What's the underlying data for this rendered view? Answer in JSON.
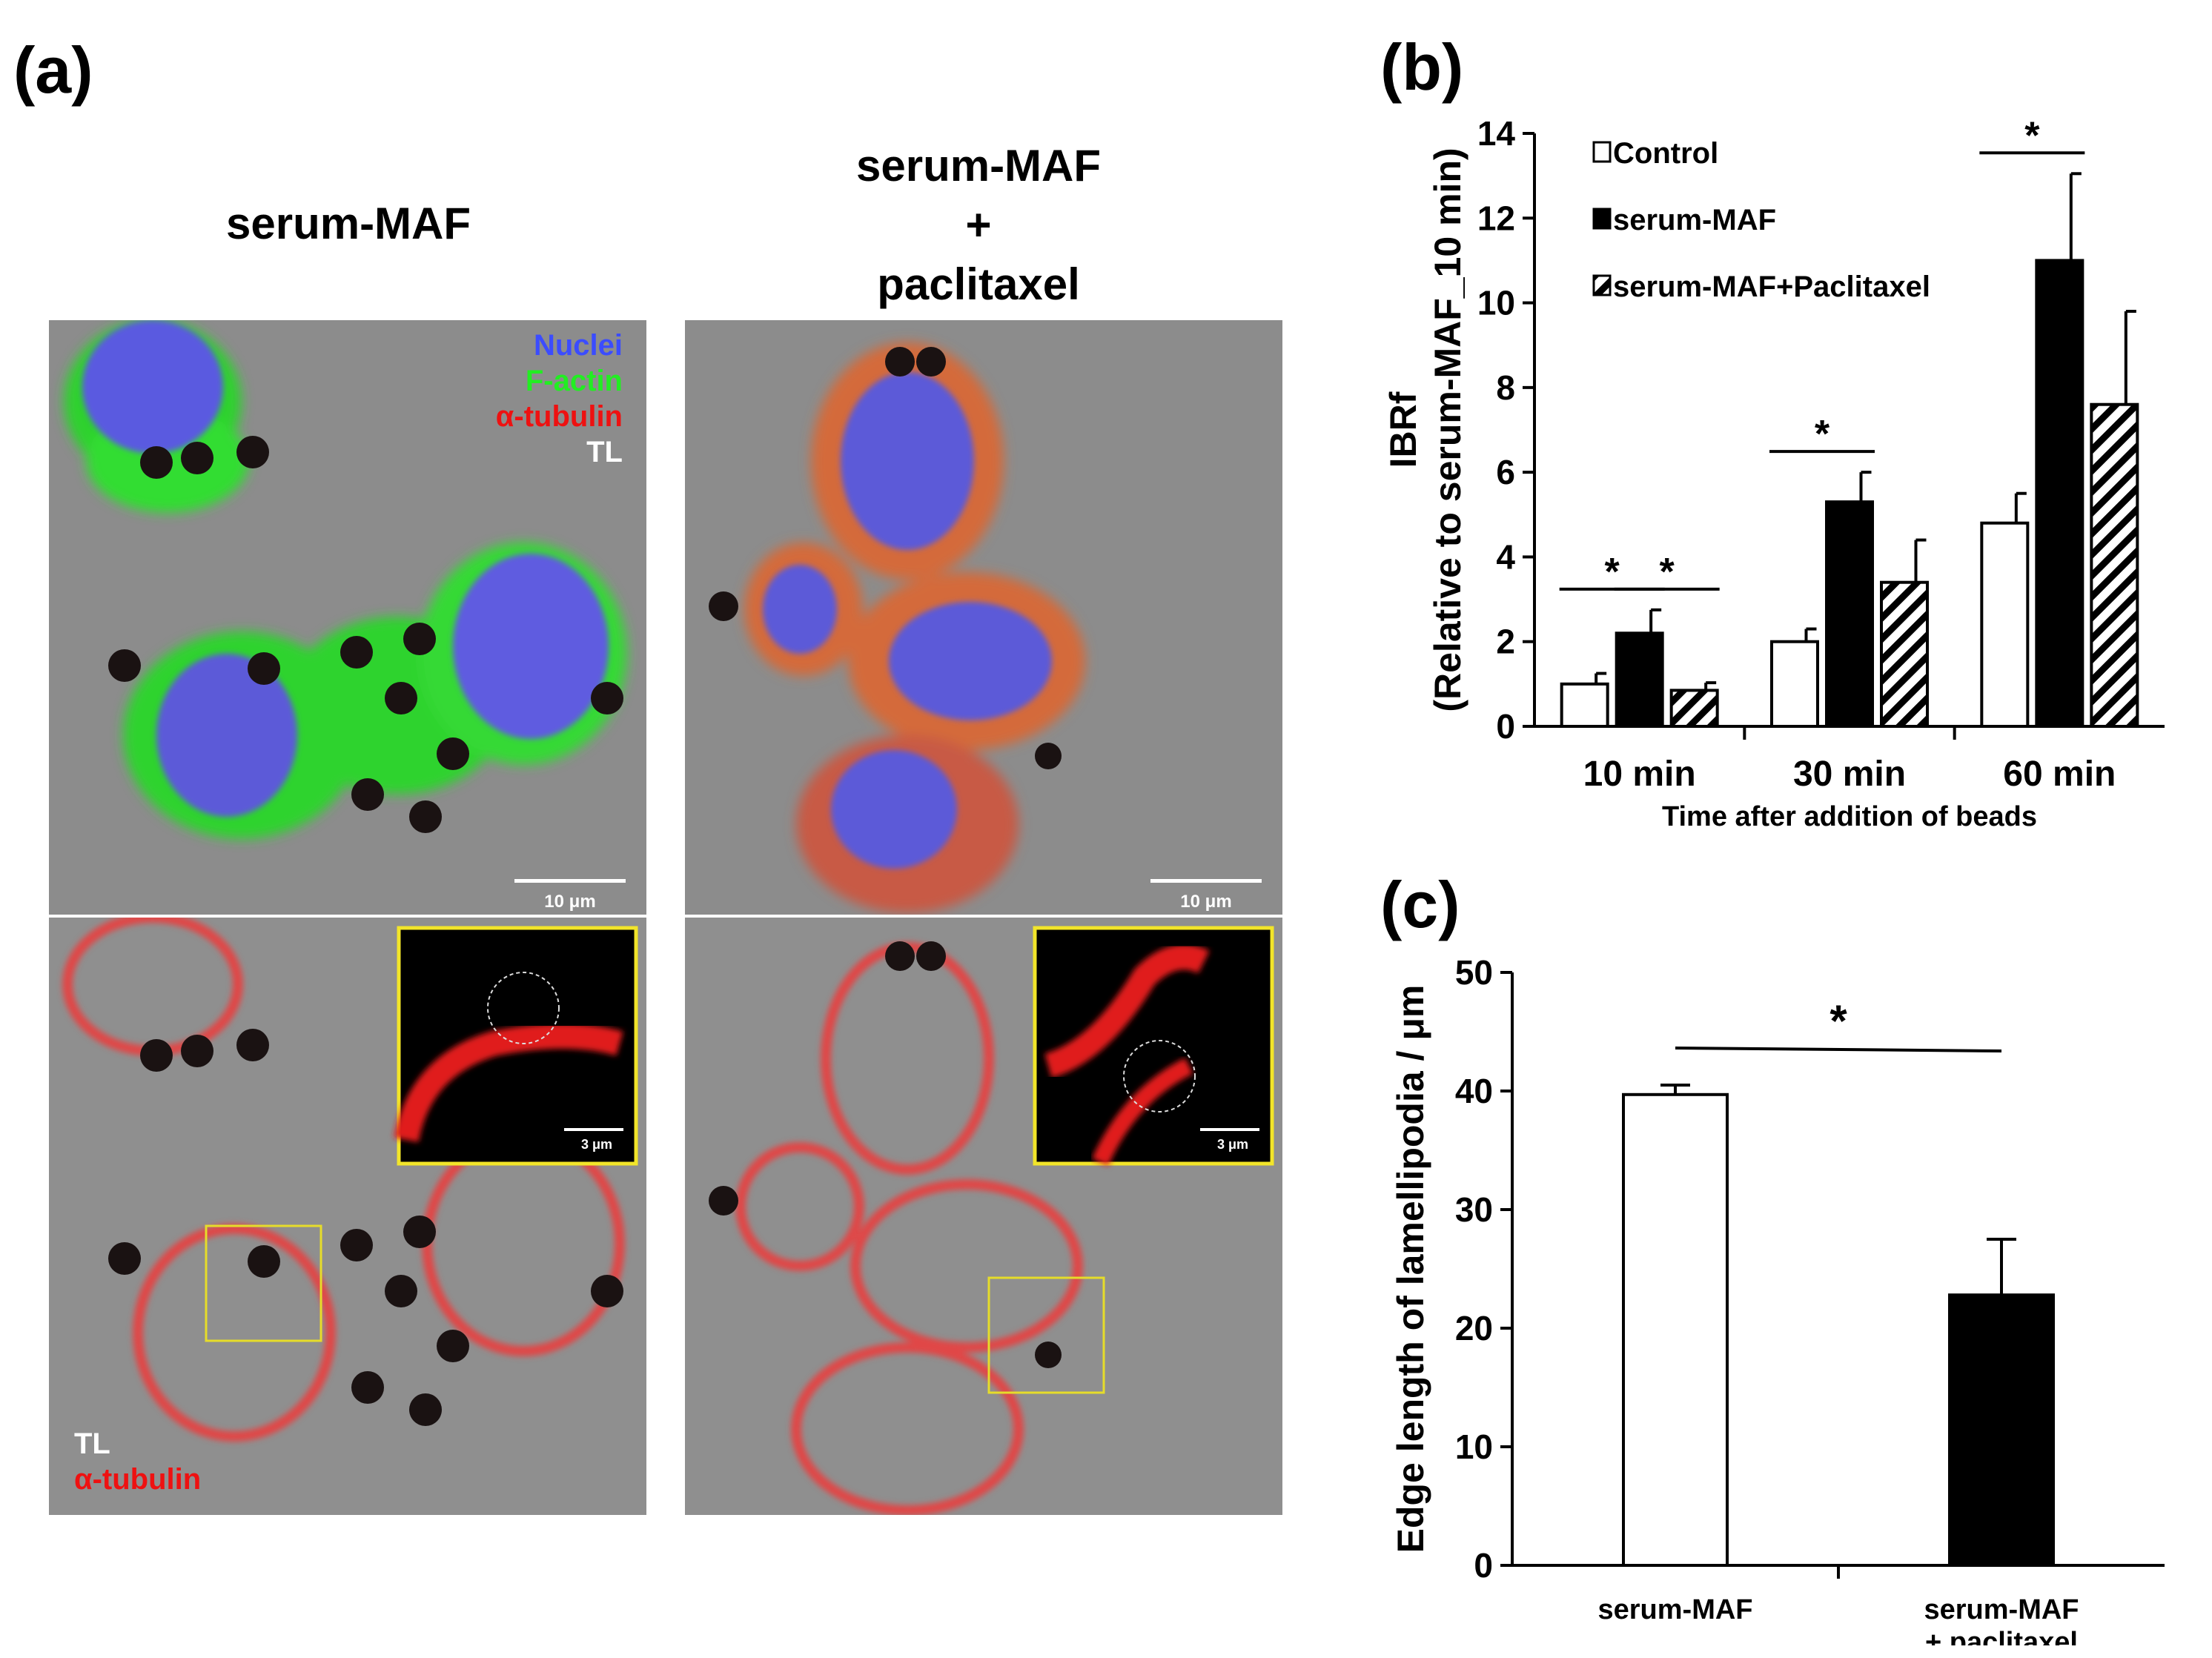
{
  "panel_a": {
    "label": "(a)",
    "col1_title": "serum-MAF",
    "col2_title_lines": [
      "serum-MAF",
      "+",
      "paclitaxel"
    ],
    "top_legend": {
      "nuclei": "Nuclei",
      "factin": "F-actin",
      "tubulin": "α-tubulin",
      "tl": "TL",
      "colors": {
        "nuclei": "#3b4cff",
        "factin": "#22ee22",
        "tubulin": "#ee1111",
        "tl": "#ffffff"
      }
    },
    "bottom_legend": {
      "tl": "TL",
      "tubulin": "α-tubulin"
    },
    "scale_top": "10 μm",
    "scale_inset": "3 μm"
  },
  "chart_data": [
    {
      "id": "b",
      "label": "(b)",
      "type": "bar",
      "categories": [
        "10 min",
        "30 min",
        "60 min"
      ],
      "series": [
        {
          "name": "Control",
          "values": [
            1.0,
            2.0,
            4.8
          ],
          "errors": [
            0.25,
            0.3,
            0.7
          ],
          "fill": "white"
        },
        {
          "name": "serum-MAF",
          "values": [
            2.2,
            5.3,
            11.0
          ],
          "errors": [
            0.55,
            0.7,
            2.05
          ],
          "fill": "black"
        },
        {
          "name": "serum-MAF+Paclitaxel",
          "values": [
            0.85,
            3.4,
            7.6
          ],
          "errors": [
            0.18,
            1.0,
            2.2
          ],
          "fill": "hatch"
        }
      ],
      "ylabel_lines": [
        "IBRf",
        "(Relative to serum-MAF_10 min)"
      ],
      "xlabel": "Time after addition of beads",
      "yticks": [
        0,
        2,
        4,
        6,
        8,
        10,
        12,
        14
      ],
      "ylim": [
        0,
        14
      ],
      "significance": [
        {
          "group": 0,
          "from": 0,
          "to": 1,
          "text": "*"
        },
        {
          "group": 0,
          "from": 1,
          "to": 2,
          "text": "*"
        },
        {
          "group": 1,
          "from": 0,
          "to": 1,
          "text": "*"
        },
        {
          "group": 2,
          "from": 0,
          "to": 1,
          "text": "*"
        }
      ]
    },
    {
      "id": "c",
      "label": "(c)",
      "type": "bar",
      "categories": [
        "serum-MAF",
        "serum-MAF\n+ paclitaxel"
      ],
      "values": [
        39.7,
        22.8
      ],
      "errors": [
        0.8,
        4.7
      ],
      "fills": [
        "white",
        "black"
      ],
      "ylabel": "Edge length of lamellipodia / μm",
      "yticks": [
        0,
        10,
        20,
        30,
        40,
        50
      ],
      "ylim": [
        0,
        50
      ],
      "significance": {
        "text": "*"
      }
    }
  ]
}
